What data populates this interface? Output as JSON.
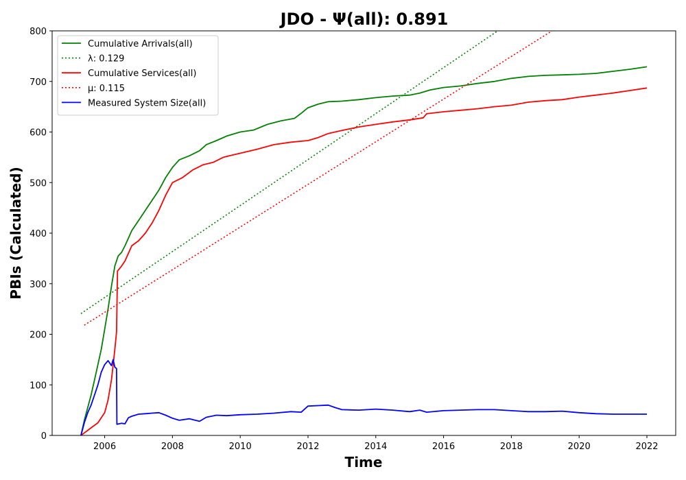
{
  "chart_data": {
    "type": "line",
    "title": "JDO -  Ψ(all): 0.891",
    "xlabel": "Time",
    "ylabel": "PBIs (Calculated)",
    "xlim": [
      2004.45,
      2022.85
    ],
    "ylim": [
      0,
      800
    ],
    "xticks": [
      2006,
      2008,
      2010,
      2012,
      2014,
      2016,
      2018,
      2020,
      2022
    ],
    "yticks": [
      0,
      100,
      200,
      300,
      400,
      500,
      600,
      700,
      800
    ],
    "legend_position": "upper-left",
    "series": [
      {
        "name": "Cumulative Arrivals(all)",
        "color": "#008000",
        "style": "solid",
        "points": [
          [
            2005.3,
            0
          ],
          [
            2005.4,
            30
          ],
          [
            2005.5,
            55
          ],
          [
            2005.6,
            80
          ],
          [
            2005.7,
            110
          ],
          [
            2005.8,
            140
          ],
          [
            2005.9,
            170
          ],
          [
            2006.0,
            210
          ],
          [
            2006.1,
            250
          ],
          [
            2006.2,
            295
          ],
          [
            2006.3,
            335
          ],
          [
            2006.4,
            355
          ],
          [
            2006.5,
            362
          ],
          [
            2006.6,
            375
          ],
          [
            2006.7,
            390
          ],
          [
            2006.8,
            405
          ],
          [
            2007.0,
            425
          ],
          [
            2007.2,
            445
          ],
          [
            2007.4,
            465
          ],
          [
            2007.6,
            485
          ],
          [
            2007.8,
            510
          ],
          [
            2008.0,
            530
          ],
          [
            2008.2,
            545
          ],
          [
            2008.5,
            553
          ],
          [
            2008.8,
            563
          ],
          [
            2009.0,
            575
          ],
          [
            2009.3,
            583
          ],
          [
            2009.6,
            592
          ],
          [
            2010.0,
            600
          ],
          [
            2010.4,
            604
          ],
          [
            2010.8,
            615
          ],
          [
            2011.2,
            622
          ],
          [
            2011.6,
            627
          ],
          [
            2011.8,
            637
          ],
          [
            2012.0,
            648
          ],
          [
            2012.3,
            655
          ],
          [
            2012.6,
            660
          ],
          [
            2013.0,
            661
          ],
          [
            2013.5,
            664
          ],
          [
            2014.0,
            668
          ],
          [
            2014.5,
            671
          ],
          [
            2015.0,
            673
          ],
          [
            2015.3,
            677
          ],
          [
            2015.6,
            683
          ],
          [
            2016.0,
            688
          ],
          [
            2016.5,
            691
          ],
          [
            2017.0,
            696
          ],
          [
            2017.5,
            700
          ],
          [
            2018.0,
            706
          ],
          [
            2018.5,
            710
          ],
          [
            2019.0,
            712
          ],
          [
            2019.5,
            713
          ],
          [
            2020.0,
            714
          ],
          [
            2020.5,
            716
          ],
          [
            2021.0,
            720
          ],
          [
            2021.5,
            724
          ],
          [
            2022.0,
            729
          ]
        ]
      },
      {
        "name": "λ: 0.129",
        "color": "#008000",
        "style": "dotted",
        "points": [
          [
            2005.3,
            241
          ],
          [
            2017.6,
            800
          ]
        ]
      },
      {
        "name": "Cumulative Services(all)",
        "color": "#ff0000",
        "style": "solid",
        "points": [
          [
            2005.3,
            0
          ],
          [
            2005.4,
            5
          ],
          [
            2005.5,
            10
          ],
          [
            2005.6,
            15
          ],
          [
            2005.8,
            25
          ],
          [
            2006.0,
            45
          ],
          [
            2006.1,
            70
          ],
          [
            2006.2,
            110
          ],
          [
            2006.3,
            170
          ],
          [
            2006.35,
            205
          ],
          [
            2006.38,
            325
          ],
          [
            2006.5,
            335
          ],
          [
            2006.6,
            345
          ],
          [
            2006.8,
            375
          ],
          [
            2007.0,
            385
          ],
          [
            2007.2,
            400
          ],
          [
            2007.4,
            420
          ],
          [
            2007.6,
            445
          ],
          [
            2007.8,
            475
          ],
          [
            2008.0,
            500
          ],
          [
            2008.3,
            510
          ],
          [
            2008.6,
            525
          ],
          [
            2008.9,
            535
          ],
          [
            2009.2,
            540
          ],
          [
            2009.5,
            550
          ],
          [
            2009.8,
            555
          ],
          [
            2010.0,
            558
          ],
          [
            2010.5,
            566
          ],
          [
            2011.0,
            575
          ],
          [
            2011.5,
            580
          ],
          [
            2012.0,
            583
          ],
          [
            2012.3,
            589
          ],
          [
            2012.6,
            597
          ],
          [
            2013.0,
            603
          ],
          [
            2013.5,
            610
          ],
          [
            2014.0,
            615
          ],
          [
            2014.5,
            620
          ],
          [
            2015.0,
            624
          ],
          [
            2015.4,
            628
          ],
          [
            2015.5,
            636
          ],
          [
            2016.0,
            640
          ],
          [
            2016.5,
            643
          ],
          [
            2017.0,
            646
          ],
          [
            2017.5,
            650
          ],
          [
            2018.0,
            653
          ],
          [
            2018.5,
            659
          ],
          [
            2019.0,
            662
          ],
          [
            2019.5,
            664
          ],
          [
            2020.0,
            669
          ],
          [
            2020.5,
            673
          ],
          [
            2021.0,
            677
          ],
          [
            2021.5,
            682
          ],
          [
            2022.0,
            687
          ]
        ]
      },
      {
        "name": "μ: 0.115",
        "color": "#ff0000",
        "style": "dotted",
        "points": [
          [
            2005.4,
            218
          ],
          [
            2019.2,
            800
          ]
        ]
      },
      {
        "name": "Measured System Size(all)",
        "color": "#0000ff",
        "style": "solid",
        "points": [
          [
            2005.3,
            0
          ],
          [
            2005.4,
            25
          ],
          [
            2005.5,
            45
          ],
          [
            2005.6,
            60
          ],
          [
            2005.7,
            80
          ],
          [
            2005.8,
            100
          ],
          [
            2005.9,
            125
          ],
          [
            2006.0,
            140
          ],
          [
            2006.1,
            148
          ],
          [
            2006.2,
            138
          ],
          [
            2006.25,
            150
          ],
          [
            2006.3,
            135
          ],
          [
            2006.35,
            132
          ],
          [
            2006.36,
            22
          ],
          [
            2006.5,
            24
          ],
          [
            2006.6,
            23
          ],
          [
            2006.7,
            35
          ],
          [
            2006.8,
            38
          ],
          [
            2007.0,
            42
          ],
          [
            2007.2,
            43
          ],
          [
            2007.4,
            44
          ],
          [
            2007.6,
            45
          ],
          [
            2007.8,
            40
          ],
          [
            2008.0,
            34
          ],
          [
            2008.2,
            30
          ],
          [
            2008.5,
            33
          ],
          [
            2008.8,
            28
          ],
          [
            2009.0,
            36
          ],
          [
            2009.3,
            40
          ],
          [
            2009.6,
            39
          ],
          [
            2010.0,
            41
          ],
          [
            2010.5,
            42
          ],
          [
            2011.0,
            44
          ],
          [
            2011.5,
            47
          ],
          [
            2011.8,
            46
          ],
          [
            2012.0,
            58
          ],
          [
            2012.3,
            59
          ],
          [
            2012.6,
            60
          ],
          [
            2012.8,
            55
          ],
          [
            2013.0,
            51
          ],
          [
            2013.5,
            50
          ],
          [
            2014.0,
            52
          ],
          [
            2014.5,
            50
          ],
          [
            2015.0,
            47
          ],
          [
            2015.3,
            50
          ],
          [
            2015.5,
            46
          ],
          [
            2016.0,
            49
          ],
          [
            2016.5,
            50
          ],
          [
            2017.0,
            51
          ],
          [
            2017.5,
            51
          ],
          [
            2018.0,
            49
          ],
          [
            2018.5,
            47
          ],
          [
            2019.0,
            47
          ],
          [
            2019.5,
            48
          ],
          [
            2020.0,
            45
          ],
          [
            2020.5,
            43
          ],
          [
            2021.0,
            42
          ],
          [
            2021.5,
            42
          ],
          [
            2022.0,
            42
          ]
        ]
      }
    ]
  }
}
